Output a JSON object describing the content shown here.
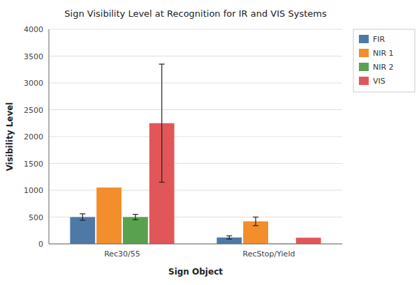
{
  "chart_data": {
    "type": "bar",
    "title": "Sign Visibility Level at Recognition for IR and VIS Systems",
    "xlabel": "Sign Object",
    "ylabel": "Visibility Level",
    "categories": [
      "Rec30/55",
      "RecStop/Yield"
    ],
    "series": [
      {
        "name": "FIR",
        "color": "#4e79a7",
        "values": [
          500,
          120
        ],
        "errors": [
          60,
          30
        ]
      },
      {
        "name": "NIR 1",
        "color": "#f28e2b",
        "values": [
          1050,
          420
        ],
        "errors": [
          0,
          80
        ]
      },
      {
        "name": "NIR 2",
        "color": "#59a14f",
        "values": [
          500,
          5
        ],
        "errors": [
          50,
          0
        ]
      },
      {
        "name": "VIS",
        "color": "#e15759",
        "values": [
          2250,
          115
        ],
        "errors": [
          1100,
          0
        ]
      }
    ],
    "ylim": [
      0,
      4000
    ],
    "yticks": [
      0,
      500,
      1000,
      1500,
      2000,
      2500,
      3000,
      3500,
      4000
    ],
    "grid": true,
    "legend": "right"
  }
}
